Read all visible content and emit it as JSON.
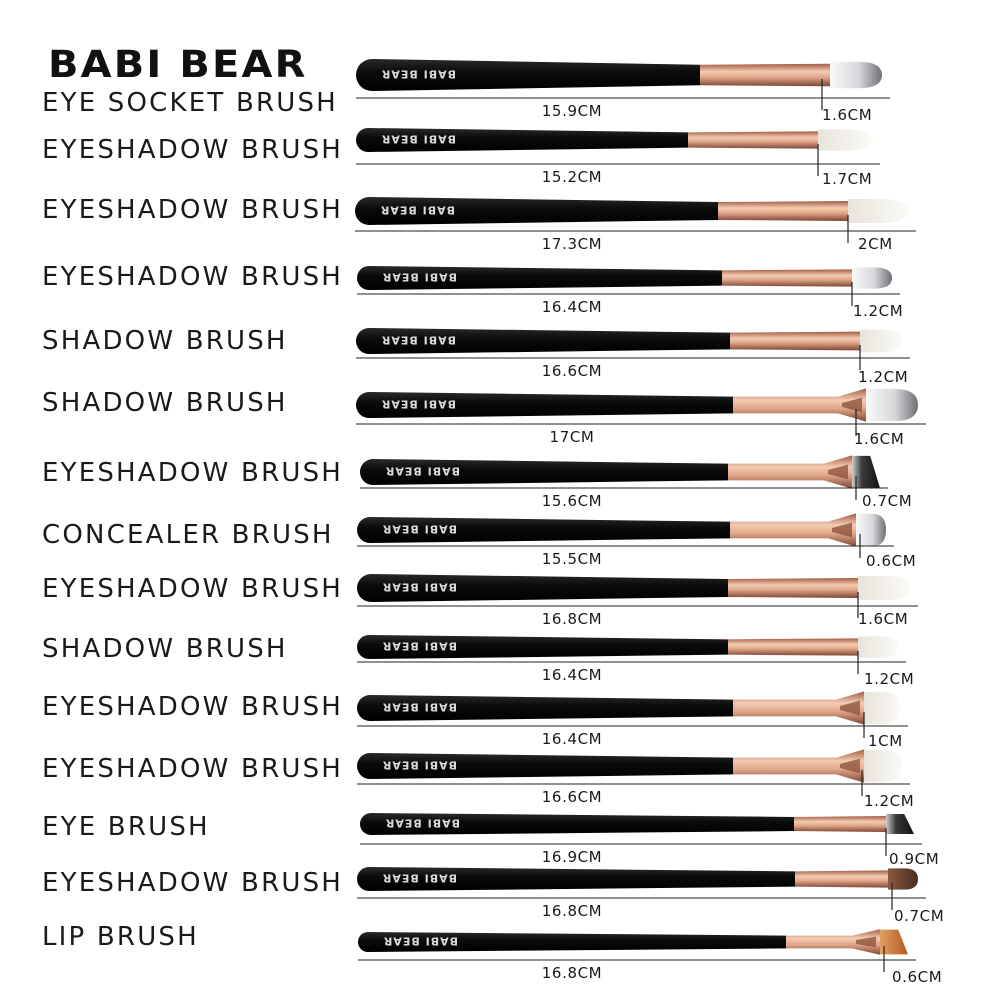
{
  "brand": "BABI BEAR",
  "colors": {
    "handle": "#0d0d0d",
    "ferrule_light": "#f2c6ae",
    "ferrule_mid": "#d99a7d",
    "ferrule_dark": "#8a4d38",
    "hair_white": "#f1efe9",
    "hair_grey": "#8e8e92",
    "hair_brown": "#6b4330",
    "hair_dark": "#1a1a1a",
    "hair_orange": "#c86b2a",
    "handle_print": "#d9d9d9"
  },
  "brushes": [
    {
      "name": "EYE SOCKET BRUSH",
      "length": "15.9CM",
      "tip": "1.6CM",
      "hair": "grey-tip",
      "ferrule": "straight"
    },
    {
      "name": "EYESHADOW BRUSH",
      "length": "15.2CM",
      "tip": "1.7CM",
      "hair": "white",
      "ferrule": "straight"
    },
    {
      "name": "EYESHADOW BRUSH",
      "length": "17.3CM",
      "tip": "2CM",
      "hair": "white",
      "ferrule": "straight"
    },
    {
      "name": "EYESHADOW BRUSH",
      "length": "16.4CM",
      "tip": "1.2CM",
      "hair": "grey-tip",
      "ferrule": "straight"
    },
    {
      "name": "SHADOW BRUSH",
      "length": "16.6CM",
      "tip": "1.2CM",
      "hair": "white",
      "ferrule": "straight"
    },
    {
      "name": "SHADOW BRUSH",
      "length": "17CM",
      "tip": "1.6CM",
      "hair": "grey-tip",
      "ferrule": "flat"
    },
    {
      "name": "EYESHADOW BRUSH",
      "length": "15.6CM",
      "tip": "0.7CM",
      "hair": "dark-angle",
      "ferrule": "flat"
    },
    {
      "name": "CONCEALER BRUSH",
      "length": "15.5CM",
      "tip": "0.6CM",
      "hair": "grey-tip",
      "ferrule": "flat"
    },
    {
      "name": "EYESHADOW BRUSH",
      "length": "16.8CM",
      "tip": "1.6CM",
      "hair": "white",
      "ferrule": "straight"
    },
    {
      "name": "SHADOW BRUSH",
      "length": "16.4CM",
      "tip": "1.2CM",
      "hair": "white",
      "ferrule": "straight"
    },
    {
      "name": "EYESHADOW BRUSH",
      "length": "16.4CM",
      "tip": "1CM",
      "hair": "white",
      "ferrule": "flat"
    },
    {
      "name": "EYESHADOW BRUSH",
      "length": "16.6CM",
      "tip": "1.2CM",
      "hair": "white",
      "ferrule": "flat"
    },
    {
      "name": "EYE BRUSH",
      "length": "16.9CM",
      "tip": "0.9CM",
      "hair": "dark-angle",
      "ferrule": "straight"
    },
    {
      "name": "EYESHADOW BRUSH",
      "length": "16.8CM",
      "tip": "0.7CM",
      "hair": "brown",
      "ferrule": "straight"
    },
    {
      "name": "LIP BRUSH",
      "length": "16.8CM",
      "tip": "0.6CM",
      "hair": "orange",
      "ferrule": "flat"
    }
  ]
}
